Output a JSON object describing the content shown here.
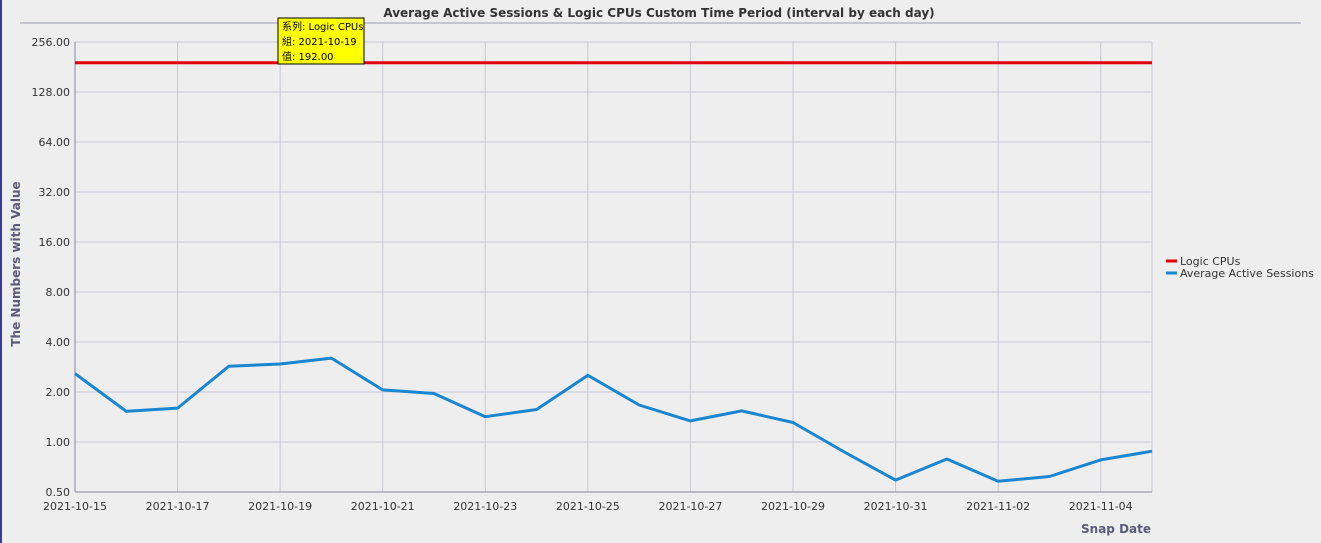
{
  "chart_data": {
    "type": "line",
    "title": "Average Active Sessions & Logic CPUs Custom Time Period (interval by each day)",
    "xlabel": "Snap Date",
    "ylabel": "The Numbers with Value",
    "y_scale": "log2",
    "ylim": [
      0.5,
      256
    ],
    "y_ticks": [
      "0.50",
      "1.00",
      "2.00",
      "4.00",
      "8.00",
      "16.00",
      "32.00",
      "64.00",
      "128.00",
      "256.00"
    ],
    "x_tick_labels": [
      "2021-10-15",
      "2021-10-17",
      "2021-10-19",
      "2021-10-21",
      "2021-10-23",
      "2021-10-25",
      "2021-10-27",
      "2021-10-29",
      "2021-10-31",
      "2021-11-02",
      "2021-11-04"
    ],
    "categories": [
      "2021-10-15",
      "2021-10-16",
      "2021-10-17",
      "2021-10-18",
      "2021-10-19",
      "2021-10-20",
      "2021-10-21",
      "2021-10-22",
      "2021-10-23",
      "2021-10-24",
      "2021-10-25",
      "2021-10-26",
      "2021-10-27",
      "2021-10-28",
      "2021-10-29",
      "2021-10-30",
      "2021-10-31",
      "2021-11-01",
      "2021-11-02",
      "2021-11-03",
      "2021-11-04",
      "2021-11-05"
    ],
    "series": [
      {
        "name": "Logic CPUs",
        "color": "#e00000",
        "values": [
          192,
          192,
          192,
          192,
          192,
          192,
          192,
          192,
          192,
          192,
          192,
          192,
          192,
          192,
          192,
          192,
          192,
          192,
          192,
          192,
          192,
          192
        ]
      },
      {
        "name": "Average Active Sessions",
        "color": "#1a86d0",
        "values": [
          2.58,
          1.53,
          1.6,
          2.86,
          2.95,
          3.2,
          2.06,
          1.96,
          1.42,
          1.57,
          2.52,
          1.67,
          1.34,
          1.54,
          1.31,
          0.87,
          0.59,
          0.79,
          0.58,
          0.62,
          0.78,
          0.88
        ]
      }
    ],
    "grid": true,
    "legend": "right",
    "tooltip": {
      "series_line": "系列: Logic CPUs",
      "group_line": "組: 2021-10-19",
      "value_line": "值: 192.00"
    }
  }
}
